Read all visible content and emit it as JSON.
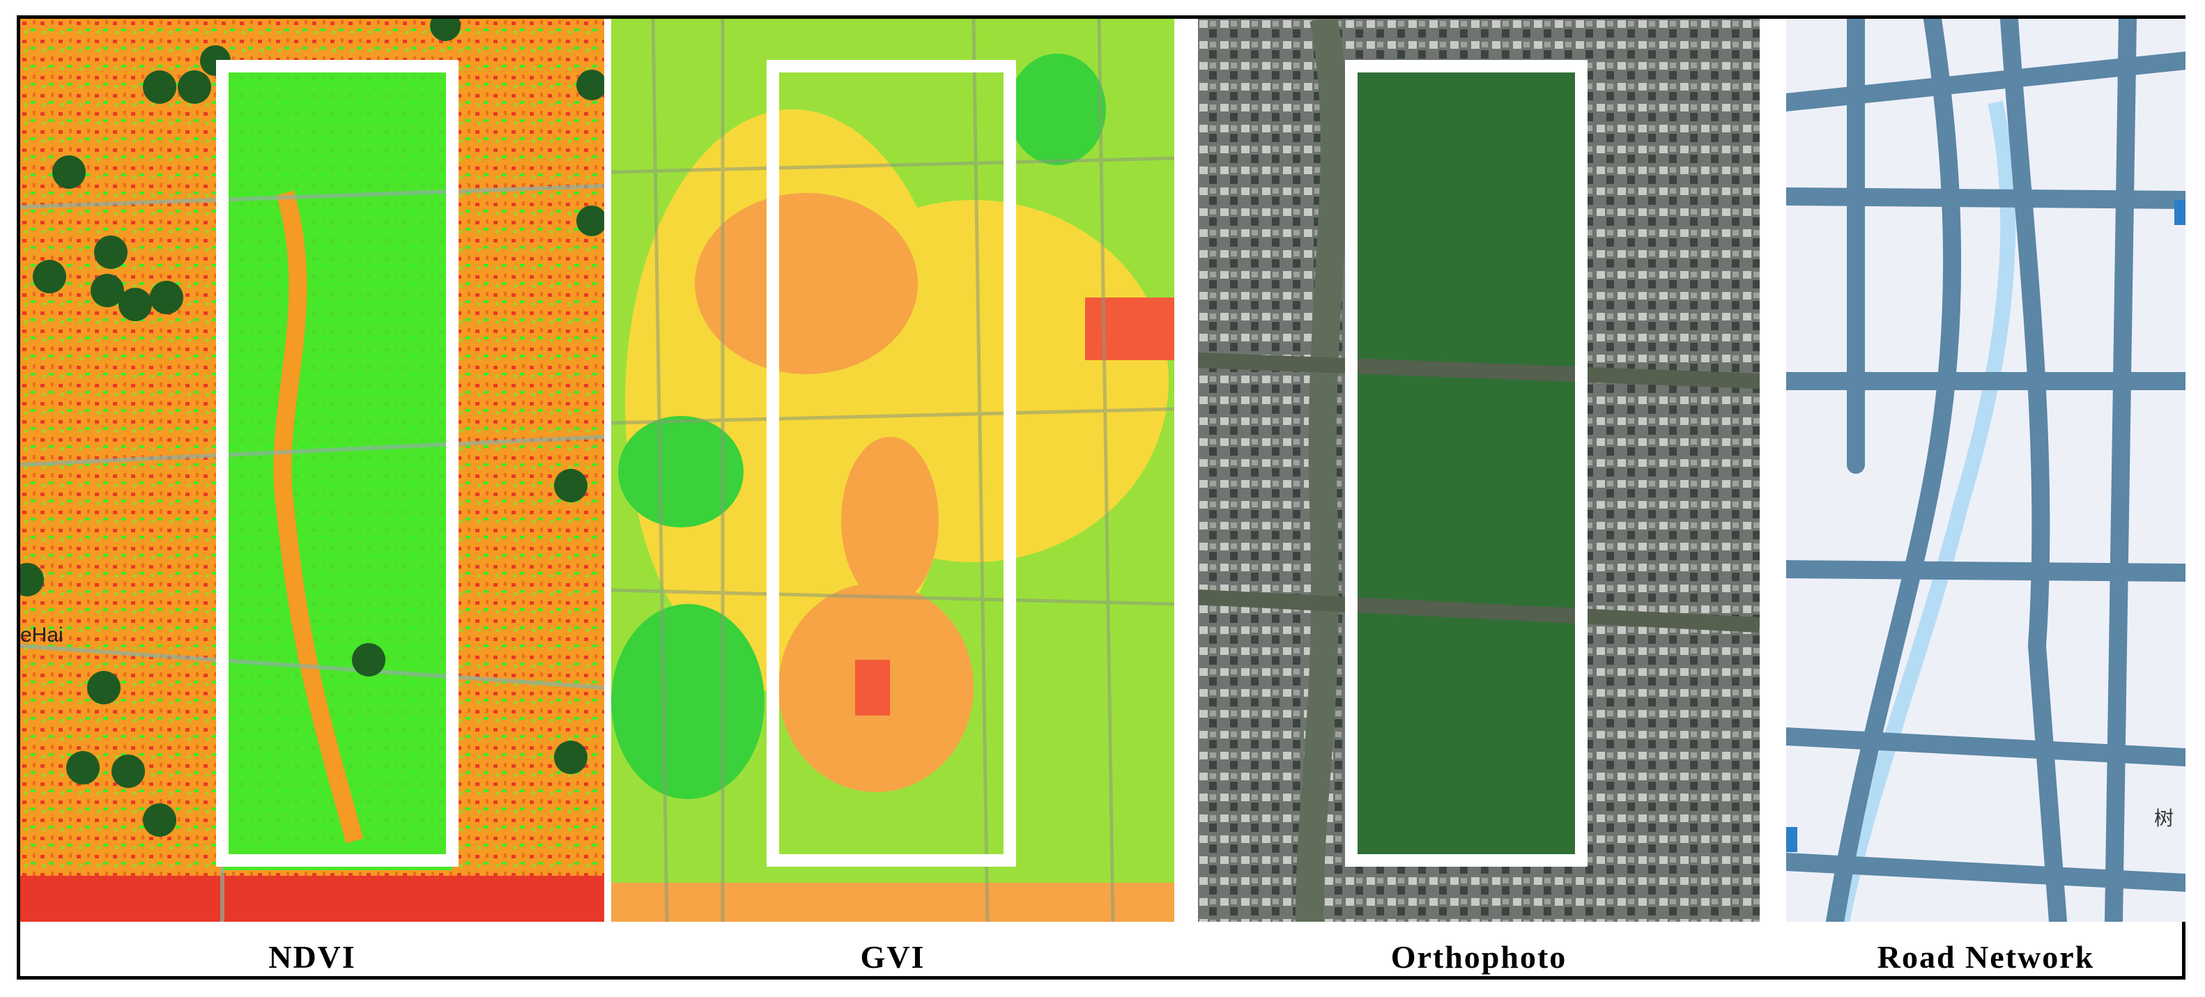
{
  "figure": {
    "panels": [
      {
        "id": "ndvi",
        "caption": "NDVI",
        "place_label": "eHai"
      },
      {
        "id": "gvi",
        "caption": "GVI"
      },
      {
        "id": "ortho",
        "caption": "Orthophoto"
      },
      {
        "id": "road",
        "caption": "Road Network",
        "edge_label": "树"
      }
    ],
    "colors": {
      "ndvi_low": "#e8382a",
      "ndvi_mid": "#f79a1e",
      "ndvi_high": "#37ee2a",
      "point_marker": "#1f5a22",
      "gvi_low": "#f25a3a",
      "gvi_mid": "#f7d83a",
      "gvi_high": "#3ad13a",
      "road": "#5b86a6",
      "water": "#b5dcf5",
      "highlight_frame": "#ffffff"
    },
    "icons": [
      "metro-station-icon"
    ]
  }
}
